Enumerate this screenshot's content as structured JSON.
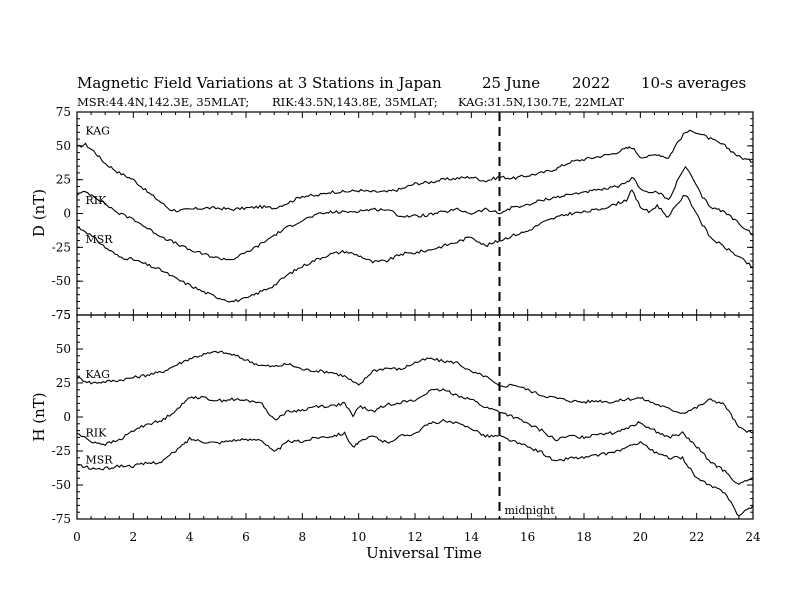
{
  "chart_data": {
    "type": "line",
    "title_parts": [
      "Magnetic Field Variations at 3 Stations in Japan",
      "25 June",
      "2022",
      "10-s averages"
    ],
    "subtitle_parts": [
      "MSR:44.4N,142.3E, 35MLAT;",
      "RIK:43.5N,143.8E, 35MLAT;",
      "KAG:31.5N,130.7E, 22MLAT"
    ],
    "xlabel": "Universal Time",
    "xlim": [
      0,
      24
    ],
    "xticks": [
      "0",
      "2",
      "4",
      "6",
      "8",
      "10",
      "12",
      "14",
      "16",
      "18",
      "20",
      "22",
      "24"
    ],
    "annotation": {
      "label": "midnight",
      "x": 15
    },
    "panels": [
      {
        "ylabel": "D (nT)",
        "ylim": [
          -75,
          75
        ],
        "yticks": [
          "75",
          "50",
          "25",
          "0",
          "-25",
          "-50",
          "-75"
        ],
        "series": [
          {
            "name": "KAG",
            "x": [
              0,
              0.3,
              0.6,
              1,
              1.5,
              2,
              2.5,
              3,
              3.3,
              3.6,
              4,
              4.5,
              5,
              5.5,
              6,
              6.5,
              7,
              7.5,
              8,
              8.5,
              9,
              9.5,
              10,
              10.5,
              11,
              11.5,
              12,
              12.5,
              13,
              13.5,
              14,
              14.5,
              15,
              15.5,
              16,
              16.5,
              17,
              17.5,
              18,
              18.5,
              19,
              19.5,
              19.7,
              20,
              20.3,
              20.6,
              21,
              21.3,
              21.6,
              21.9,
              22.2,
              22.5,
              23,
              23.5,
              24
            ],
            "y": [
              49,
              51,
              46,
              37,
              30,
              25,
              16,
              8,
              3,
              2,
              3,
              4,
              4,
              3,
              4,
              5,
              4,
              8,
              13,
              13,
              16,
              16,
              17,
              16,
              16,
              18,
              22,
              23,
              25,
              26,
              27,
              24,
              27,
              26,
              28,
              30,
              33,
              38,
              40,
              42,
              44,
              48,
              49,
              42,
              42,
              44,
              41,
              52,
              60,
              61,
              58,
              55,
              50,
              42,
              38
            ]
          },
          {
            "name": "RIK",
            "x": [
              0,
              0.3,
              0.6,
              1,
              1.5,
              2,
              2.5,
              3,
              3.5,
              4,
              4.5,
              5,
              5.5,
              6,
              6.5,
              7,
              7.5,
              8,
              8.5,
              9,
              9.5,
              10,
              10.5,
              11,
              11.5,
              12,
              12.5,
              13,
              13.5,
              14,
              14.5,
              15,
              15.5,
              16,
              16.5,
              17,
              17.5,
              18,
              18.5,
              19,
              19.5,
              19.7,
              20,
              20.3,
              20.6,
              21,
              21.3,
              21.6,
              21.9,
              22.2,
              22.5,
              23,
              23.5,
              24
            ],
            "y": [
              14,
              16,
              13,
              7,
              0,
              -4,
              -11,
              -17,
              -22,
              -27,
              -30,
              -33,
              -34,
              -29,
              -23,
              -16,
              -10,
              -5,
              -1,
              1,
              1,
              2,
              3,
              3,
              -2,
              -2,
              -1,
              1,
              3,
              0,
              3,
              0,
              5,
              6,
              10,
              12,
              14,
              16,
              17,
              19,
              22,
              27,
              19,
              15,
              16,
              10,
              23,
              35,
              24,
              12,
              5,
              1,
              -7,
              -16
            ]
          },
          {
            "name": "MSR",
            "x": [
              0,
              0.3,
              0.6,
              1,
              1.5,
              2,
              2.5,
              3,
              3.5,
              4,
              4.5,
              5,
              5.5,
              6,
              6.5,
              7,
              7.5,
              8,
              8.5,
              9,
              9.5,
              10,
              10.5,
              11,
              11.5,
              12,
              12.5,
              13,
              13.5,
              14,
              14.5,
              15,
              15.5,
              16,
              16.5,
              17,
              17.5,
              18,
              18.5,
              19,
              19.5,
              19.7,
              20,
              20.3,
              20.6,
              21,
              21.3,
              21.6,
              21.9,
              22.2,
              22.5,
              23,
              23.5,
              24
            ],
            "y": [
              -10,
              -13,
              -18,
              -25,
              -32,
              -34,
              -38,
              -42,
              -48,
              -53,
              -58,
              -62,
              -65,
              -63,
              -58,
              -53,
              -45,
              -39,
              -34,
              -30,
              -28,
              -31,
              -36,
              -35,
              -30,
              -29,
              -27,
              -24,
              -21,
              -17,
              -24,
              -20,
              -16,
              -13,
              -7,
              -3,
              0,
              1,
              3,
              6,
              10,
              17,
              5,
              1,
              6,
              -3,
              7,
              14,
              4,
              -8,
              -18,
              -25,
              -32,
              -40
            ]
          }
        ]
      },
      {
        "ylabel": "H (nT)",
        "ylim": [
          -75,
          75
        ],
        "yticks": [
          "75",
          "50",
          "25",
          "0",
          "-25",
          "-50",
          "-75"
        ],
        "series": [
          {
            "name": "KAG",
            "x": [
              0,
              0.5,
              1,
              1.5,
              2,
              2.5,
              3,
              3.5,
              4,
              4.5,
              5,
              5.5,
              6,
              6.5,
              7,
              7.5,
              8,
              8.5,
              9,
              9.5,
              10,
              10.5,
              11,
              11.5,
              12,
              12.5,
              13,
              13.5,
              14,
              14.5,
              15,
              15.5,
              16,
              16.5,
              17,
              17.5,
              18,
              18.5,
              19,
              19.5,
              20,
              20.5,
              21,
              21.5,
              22,
              22.5,
              23,
              23.5,
              24
            ],
            "y": [
              29,
              25,
              26,
              27,
              29,
              31,
              33,
              38,
              43,
              46,
              48,
              46,
              42,
              38,
              37,
              39,
              35,
              34,
              33,
              30,
              23,
              34,
              36,
              35,
              40,
              43,
              41,
              40,
              33,
              30,
              22,
              24,
              20,
              16,
              14,
              12,
              11,
              12,
              11,
              13,
              14,
              10,
              6,
              3,
              7,
              13,
              9,
              -8,
              -12
            ]
          },
          {
            "name": "RIK",
            "x": [
              0,
              0.5,
              1,
              1.5,
              2,
              2.5,
              3,
              3.5,
              3.8,
              4,
              4.5,
              5,
              5.5,
              6,
              6.5,
              7,
              7.5,
              8,
              8.5,
              9,
              9.5,
              9.8,
              10,
              10.5,
              11,
              11.5,
              12,
              12.5,
              13,
              13.5,
              14,
              14.5,
              15,
              15.5,
              16,
              16.5,
              17,
              17.5,
              18,
              18.5,
              19,
              19.5,
              20,
              20.5,
              21,
              21.5,
              22,
              22.5,
              23,
              23.5,
              24
            ],
            "y": [
              -12,
              -18,
              -20,
              -17,
              -10,
              -5,
              -3,
              5,
              10,
              15,
              14,
              12,
              13,
              12,
              11,
              -2,
              4,
              5,
              8,
              8,
              10,
              0,
              8,
              4,
              9,
              11,
              12,
              19,
              20,
              16,
              13,
              7,
              4,
              0,
              -5,
              -10,
              -17,
              -14,
              -15,
              -12,
              -12,
              -8,
              -4,
              -10,
              -15,
              -12,
              -22,
              -33,
              -40,
              -50,
              -45
            ]
          },
          {
            "name": "MSR",
            "x": [
              0,
              0.5,
              1,
              1.5,
              2,
              2.5,
              3,
              3.5,
              3.8,
              4,
              4.5,
              5,
              5.5,
              6,
              6.5,
              7,
              7.5,
              8,
              8.5,
              9,
              9.5,
              9.8,
              10,
              10.5,
              11,
              11.5,
              12,
              12.5,
              13,
              13.5,
              14,
              14.5,
              15,
              15.5,
              16,
              16.5,
              17,
              17.5,
              18,
              18.5,
              19,
              19.5,
              20,
              20.5,
              21,
              21.5,
              22,
              22.5,
              23,
              23.5,
              24
            ],
            "y": [
              -35,
              -38,
              -38,
              -36,
              -36,
              -34,
              -33,
              -25,
              -20,
              -16,
              -18,
              -19,
              -17,
              -17,
              -16,
              -26,
              -18,
              -18,
              -15,
              -14,
              -12,
              -22,
              -19,
              -14,
              -19,
              -14,
              -12,
              -5,
              -3,
              -5,
              -8,
              -14,
              -14,
              -18,
              -22,
              -26,
              -33,
              -30,
              -30,
              -28,
              -26,
              -23,
              -18,
              -26,
              -30,
              -30,
              -45,
              -51,
              -55,
              -73,
              -65
            ]
          }
        ]
      }
    ]
  }
}
